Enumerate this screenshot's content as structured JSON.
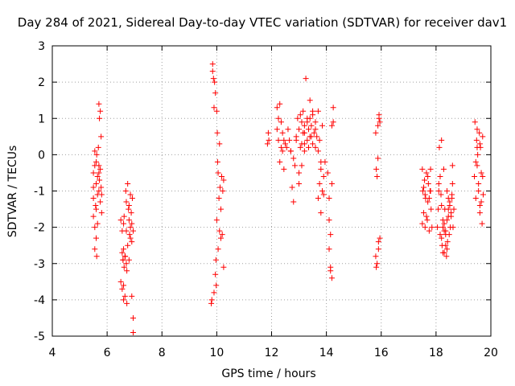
{
  "chart_data": {
    "type": "scatter",
    "title": "Day 284 of 2021, Sidereal Day-to-day VTEC variation (SDTVAR) for receiver dav1",
    "xlabel": "GPS time / hours",
    "ylabel": "SDTVAR / TECUs",
    "xlim": [
      4,
      20
    ],
    "ylim": [
      -5,
      3
    ],
    "xticks": [
      4,
      6,
      8,
      10,
      12,
      14,
      16,
      18,
      20
    ],
    "yticks": [
      -5,
      -4,
      -3,
      -2,
      -1,
      0,
      1,
      2,
      3
    ],
    "grid": true,
    "marker": "+",
    "series": [
      {
        "name": "SDTVAR",
        "color": "#ff0000",
        "x": [
          5.5,
          5.5,
          5.5,
          5.55,
          5.55,
          5.55,
          5.6,
          5.6,
          5.6,
          5.62,
          5.65,
          5.65,
          5.65,
          5.68,
          5.7,
          5.7,
          5.7,
          5.72,
          5.72,
          5.75,
          5.75,
          5.75,
          5.78,
          5.78,
          5.8,
          5.8,
          5.55,
          5.6,
          5.5,
          5.58,
          5.62,
          5.7,
          6.5,
          6.5,
          6.55,
          6.55,
          6.58,
          6.6,
          6.6,
          6.62,
          6.65,
          6.65,
          6.68,
          6.7,
          6.7,
          6.72,
          6.75,
          6.75,
          6.78,
          6.8,
          6.8,
          6.82,
          6.85,
          6.85,
          6.88,
          6.9,
          6.9,
          6.92,
          6.95,
          6.95,
          6.95,
          6.6,
          6.7,
          6.8,
          6.85,
          6.9,
          6.58,
          6.62,
          6.66,
          6.72,
          6.55,
          6.6,
          9.8,
          9.82,
          9.85,
          9.88,
          9.9,
          9.92,
          9.95,
          9.95,
          9.97,
          10.0,
          10.0,
          10.02,
          10.05,
          10.05,
          10.08,
          10.1,
          10.1,
          10.12,
          10.15,
          10.15,
          10.18,
          10.2,
          10.22,
          10.25,
          10.25,
          9.9,
          9.98,
          10.03,
          9.85,
          11.85,
          11.88,
          11.9,
          12.2,
          12.2,
          12.25,
          12.25,
          12.3,
          12.3,
          12.35,
          12.35,
          12.4,
          12.4,
          12.45,
          12.45,
          12.5,
          12.55,
          12.6,
          12.65,
          12.7,
          12.75,
          12.8,
          12.85,
          12.9,
          12.95,
          13.0,
          13.0,
          13.05,
          13.05,
          13.1,
          13.1,
          13.15,
          13.15,
          13.2,
          13.2,
          13.25,
          13.3,
          13.3,
          13.35,
          13.35,
          13.4,
          13.4,
          13.45,
          13.5,
          13.5,
          13.55,
          13.6,
          13.6,
          13.65,
          13.7,
          13.7,
          13.75,
          13.75,
          13.8,
          13.8,
          13.85,
          13.85,
          13.9,
          13.95,
          13.1,
          13.2,
          13.3,
          13.4,
          13.5,
          13.6,
          12.9,
          13.0,
          13.2,
          13.45,
          13.7,
          13.8,
          13.9,
          12.8,
          12.7,
          14.05,
          14.1,
          14.1,
          14.15,
          14.15,
          14.2,
          14.2,
          14.25,
          14.25,
          14.1,
          14.15,
          14.2,
          15.8,
          15.82,
          15.85,
          15.88,
          15.9,
          15.92,
          15.95,
          15.8,
          15.85,
          15.9,
          15.95,
          15.82,
          15.88,
          15.92,
          17.5,
          17.52,
          17.55,
          17.58,
          17.6,
          17.62,
          17.65,
          17.68,
          17.7,
          17.72,
          17.75,
          17.78,
          17.8,
          17.82,
          17.85,
          17.5,
          17.6,
          17.7,
          17.8,
          17.55,
          17.65,
          17.75,
          18.05,
          18.08,
          18.1,
          18.12,
          18.15,
          18.18,
          18.2,
          18.22,
          18.25,
          18.28,
          18.3,
          18.32,
          18.35,
          18.38,
          18.4,
          18.42,
          18.45,
          18.48,
          18.5,
          18.52,
          18.55,
          18.58,
          18.6,
          18.62,
          18.65,
          18.1,
          18.2,
          18.3,
          18.4,
          18.5,
          18.6,
          18.15,
          18.25,
          18.35,
          18.45,
          18.55,
          18.2,
          18.3,
          18.4,
          18.25,
          18.35,
          18.45,
          18.58,
          19.4,
          19.42,
          19.45,
          19.48,
          19.5,
          19.52,
          19.55,
          19.58,
          19.6,
          19.62,
          19.65,
          19.68,
          19.7,
          19.72,
          19.45,
          19.5,
          19.55,
          19.6,
          19.65,
          19.7,
          19.5,
          19.6
        ],
        "y": [
          -0.5,
          -1.2,
          -1.7,
          -0.3,
          -2.0,
          -2.6,
          -0.8,
          -1.5,
          -2.3,
          0.0,
          -0.6,
          -1.1,
          -1.9,
          0.2,
          1.4,
          -0.3,
          -1.0,
          1.0,
          -0.7,
          1.2,
          -0.4,
          -1.3,
          0.5,
          -0.9,
          -1.1,
          -1.6,
          0.1,
          -0.2,
          -0.9,
          -1.4,
          -2.8,
          -0.5,
          -1.8,
          -3.5,
          -2.7,
          -3.7,
          -2.9,
          -4.0,
          -1.9,
          -3.1,
          -2.8,
          -3.9,
          -1.0,
          -1.3,
          -2.1,
          -4.1,
          -0.8,
          -2.5,
          -1.5,
          -1.8,
          -2.9,
          -2.2,
          -1.1,
          -2.0,
          -1.6,
          -2.4,
          -3.9,
          -1.2,
          -2.1,
          -4.5,
          -4.9,
          -2.6,
          -3.0,
          -1.4,
          -2.3,
          -1.9,
          -2.9,
          -1.7,
          -2.8,
          -3.2,
          -2.1,
          -3.6,
          -4.1,
          -4.0,
          2.5,
          2.1,
          -3.8,
          2.0,
          1.7,
          -3.3,
          -2.9,
          1.2,
          -1.8,
          0.6,
          -0.5,
          -2.6,
          -1.2,
          -2.1,
          0.3,
          -0.9,
          -2.3,
          -1.5,
          -0.6,
          -2.2,
          -1.0,
          -3.1,
          -0.7,
          1.3,
          -3.6,
          -0.2,
          2.3,
          0.3,
          0.6,
          0.4,
          1.3,
          0.7,
          0.4,
          1.0,
          -0.2,
          1.4,
          0.2,
          0.9,
          0.6,
          0.1,
          0.4,
          -0.4,
          0.3,
          0.2,
          0.7,
          0.4,
          0.1,
          -0.9,
          -1.3,
          -0.3,
          0.5,
          1.0,
          0.7,
          -0.8,
          1.1,
          0.2,
          0.9,
          -0.3,
          0.6,
          1.2,
          0.3,
          0.8,
          2.1,
          0.4,
          1.0,
          0.2,
          0.7,
          0.5,
          1.5,
          0.8,
          0.3,
          1.1,
          0.6,
          0.9,
          0.2,
          0.5,
          0.1,
          -1.2,
          0.4,
          -0.8,
          -0.4,
          -1.6,
          0.8,
          -1.0,
          -0.6,
          -0.2,
          0.3,
          0.6,
          0.9,
          1.0,
          1.2,
          0.7,
          0.4,
          -0.5,
          0.1,
          0.5,
          1.2,
          -0.2,
          -1.1,
          -0.1,
          0.1,
          -0.5,
          -1.8,
          -2.6,
          -2.2,
          -3.1,
          -3.4,
          -0.8,
          0.9,
          1.3,
          -1.2,
          -3.2,
          0.8,
          -2.8,
          -0.4,
          -3.0,
          0.8,
          -2.6,
          1.1,
          -2.3,
          0.6,
          -0.6,
          -2.4,
          0.9,
          -3.1,
          -0.1,
          1.0,
          -0.4,
          -1.0,
          -1.6,
          -0.7,
          -2.0,
          -1.2,
          -0.5,
          -1.8,
          -1.3,
          -0.8,
          -2.1,
          -1.0,
          -0.4,
          -1.5,
          -2.0,
          -1.9,
          -1.1,
          -0.6,
          -1.0,
          -0.9,
          -1.7,
          -1.2,
          -2.0,
          -1.5,
          -0.8,
          0.2,
          -2.2,
          -1.1,
          0.4,
          -2.5,
          -1.8,
          -0.4,
          -2.7,
          -1.5,
          -2.1,
          -2.8,
          -1.0,
          -2.4,
          -1.7,
          -2.2,
          -1.4,
          -2.0,
          -1.6,
          -1.2,
          -0.3,
          -2.0,
          -1.5,
          -1.0,
          -2.3,
          -1.9,
          -2.6,
          -1.3,
          -0.8,
          -0.6,
          -2.0,
          -2.5,
          -1.2,
          -1.7,
          -1.4,
          -2.1,
          -1.8,
          -2.7,
          -2.2,
          -1.5,
          -1.1,
          -0.6,
          0.9,
          -1.2,
          0.4,
          -0.3,
          0.0,
          -1.0,
          0.6,
          -1.4,
          0.2,
          -0.5,
          -1.9,
          0.5,
          -1.1,
          -0.2,
          0.7,
          -0.8,
          0.3,
          -1.3,
          -0.6,
          0.2,
          -1.6
        ]
      }
    ]
  }
}
